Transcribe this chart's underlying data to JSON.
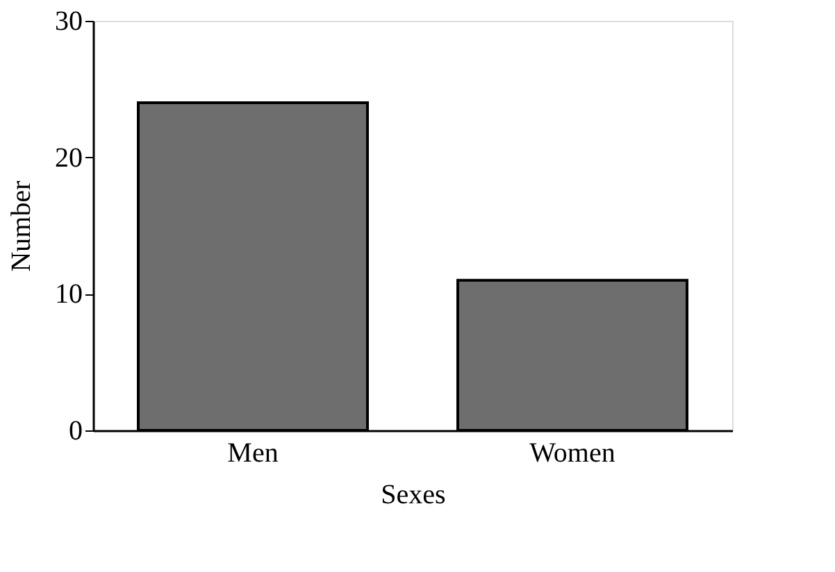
{
  "chart_data": {
    "type": "bar",
    "xlabel": "Sexes",
    "ylabel": "Number",
    "categories": [
      "Men",
      "Women"
    ],
    "values": [
      24,
      11
    ],
    "color": "#6e6e6e",
    "ylim": [
      0,
      30
    ],
    "yticks": [
      0,
      10,
      20,
      30
    ],
    "grid": false
  }
}
